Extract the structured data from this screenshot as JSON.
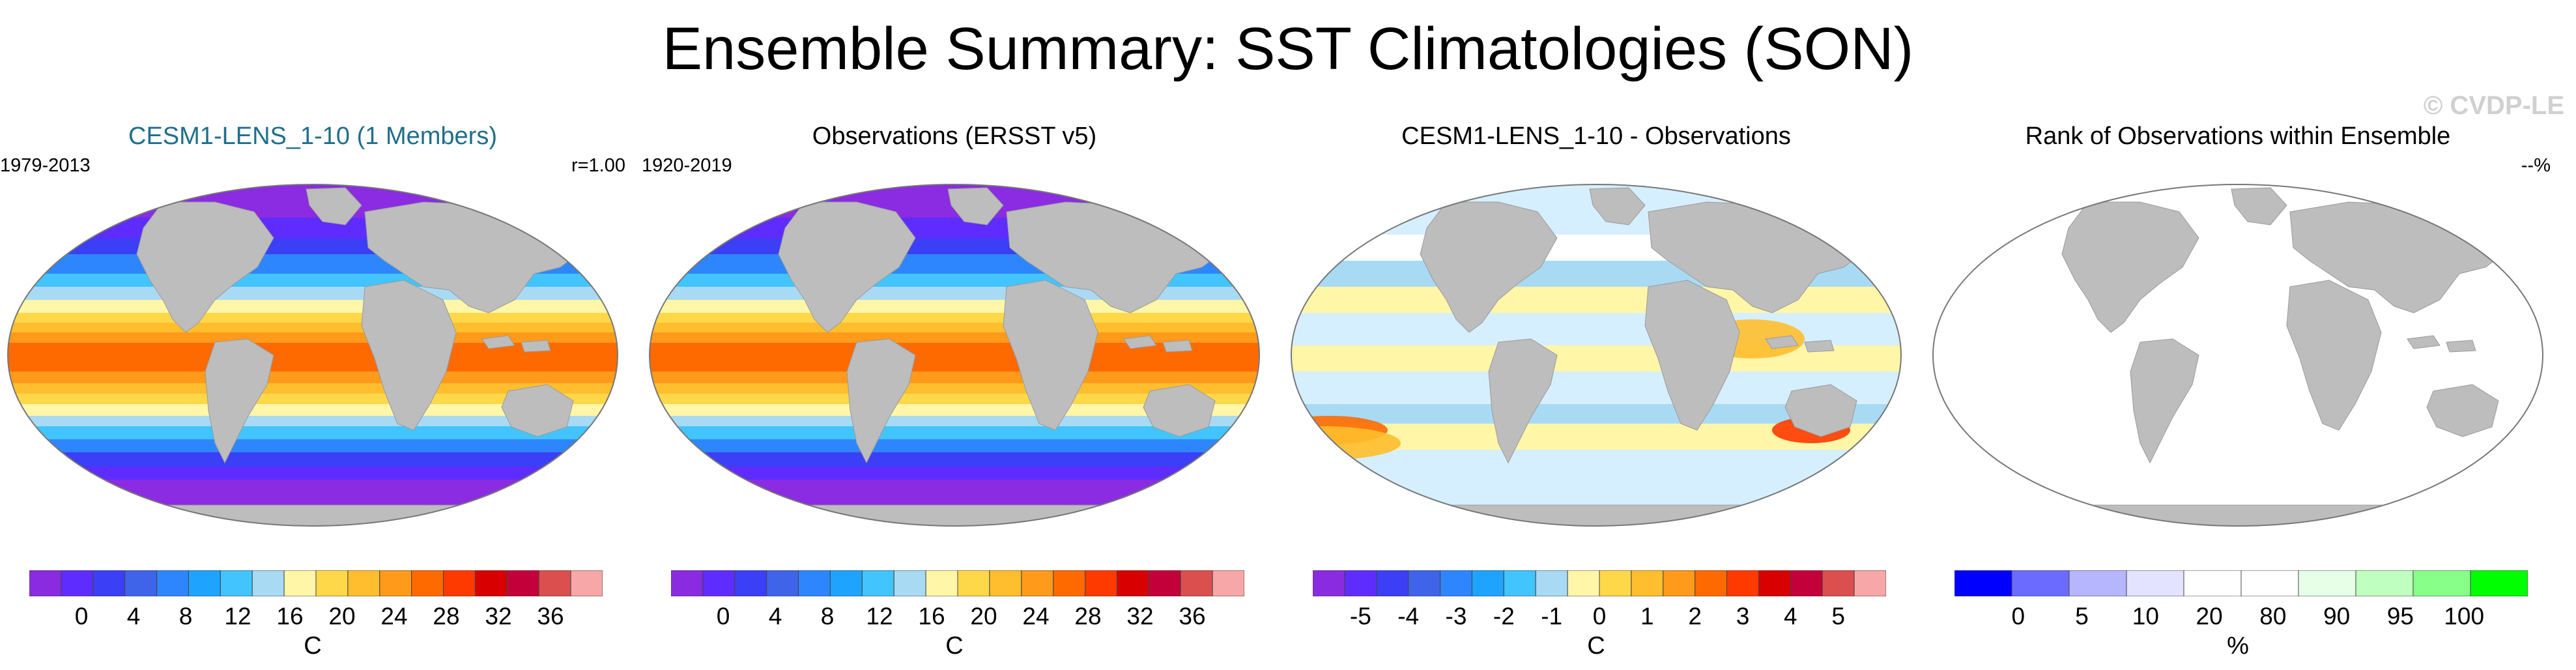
{
  "page": {
    "title": "Ensemble Summary: SST Climatologies (SON)",
    "watermark": "© CVDP-LE"
  },
  "panels": [
    {
      "title": "CESM1-LENS_1-10 (1 Members)",
      "left_note": "1979-2013",
      "right_note": "r=1.00",
      "unit": "C",
      "colorbar": {
        "colors": [
          "#8a2be2",
          "#5f2cff",
          "#3b3ff6",
          "#3f64ea",
          "#2e86ff",
          "#1ea4ff",
          "#42c4ff",
          "#a8daf4",
          "#fff6a8",
          "#ffd84a",
          "#ffbe2e",
          "#ff9a1a",
          "#ff6a00",
          "#ff3a00",
          "#d80000",
          "#c3003a",
          "#db4f4f",
          "#f7a7a7"
        ],
        "ticks": [
          "0",
          "4",
          "8",
          "12",
          "16",
          "20",
          "24",
          "28",
          "32",
          "36"
        ]
      }
    },
    {
      "title": "Observations (ERSST v5)",
      "left_note": "1920-2019",
      "unit": "C",
      "colorbar": {
        "colors": [
          "#8a2be2",
          "#5f2cff",
          "#3b3ff6",
          "#3f64ea",
          "#2e86ff",
          "#1ea4ff",
          "#42c4ff",
          "#a8daf4",
          "#fff6a8",
          "#ffd84a",
          "#ffbe2e",
          "#ff9a1a",
          "#ff6a00",
          "#ff3a00",
          "#d80000",
          "#c3003a",
          "#db4f4f",
          "#f7a7a7"
        ],
        "ticks": [
          "0",
          "4",
          "8",
          "12",
          "16",
          "20",
          "24",
          "28",
          "32",
          "36"
        ]
      }
    },
    {
      "title": "CESM1-LENS_1-10 - Observations",
      "unit": "C",
      "colorbar": {
        "colors": [
          "#8a2be2",
          "#5f2cff",
          "#3b3ff6",
          "#3f64ea",
          "#2e86ff",
          "#1ea4ff",
          "#42c4ff",
          "#a8daf4",
          "#fff6a8",
          "#ffd84a",
          "#ffbe2e",
          "#ff9a1a",
          "#ff6a00",
          "#ff3a00",
          "#d80000",
          "#c3003a",
          "#db4f4f",
          "#f7a7a7"
        ],
        "ticks": [
          "-5",
          "-4",
          "-3",
          "-2",
          "-1",
          "0",
          "1",
          "2",
          "3",
          "4",
          "5"
        ]
      }
    },
    {
      "title": "Rank of Observations within Ensemble",
      "right_note": "--%",
      "unit": "%",
      "colorbar": {
        "colors": [
          "#0000ff",
          "#6b6bff",
          "#b6b6ff",
          "#e3e3ff",
          "#ffffff",
          "#ffffff",
          "#e6ffe6",
          "#bfffbf",
          "#88ff88",
          "#00ff00"
        ],
        "ticks": [
          "0",
          "5",
          "10",
          "20",
          "80",
          "90",
          "95",
          "100"
        ]
      }
    }
  ]
}
